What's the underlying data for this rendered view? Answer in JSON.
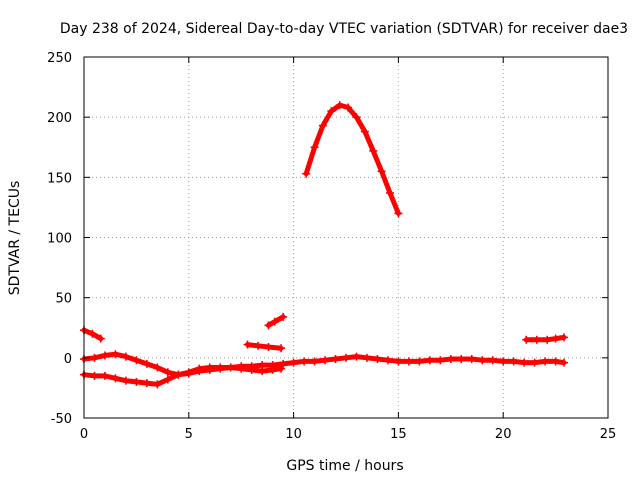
{
  "chart_data": {
    "type": "scatter",
    "title": "Day 238 of 2024, Sidereal Day-to-day VTEC variation (SDTVAR) for receiver dae3",
    "xlabel": "GPS time / hours",
    "ylabel": "SDTVAR / TECUs",
    "xlim": [
      0,
      25
    ],
    "ylim": [
      -50,
      250
    ],
    "x_ticks": [
      "0",
      "5",
      "10",
      "15",
      "20",
      "25"
    ],
    "y_ticks": [
      "-50",
      "0",
      "50",
      "100",
      "150",
      "200",
      "250"
    ],
    "grid": true,
    "marker": "plus",
    "color": "#ff0000",
    "series": [
      {
        "name": "upper-left",
        "points": [
          [
            0.0,
            23
          ],
          [
            0.4,
            20
          ],
          [
            0.8,
            16
          ]
        ]
      },
      {
        "name": "main-band",
        "points": [
          [
            0.0,
            -1
          ],
          [
            0.5,
            0
          ],
          [
            1.0,
            2
          ],
          [
            1.5,
            3
          ],
          [
            2.0,
            1
          ],
          [
            2.5,
            -2
          ],
          [
            3.0,
            -5
          ],
          [
            3.5,
            -8
          ],
          [
            4.0,
            -12
          ],
          [
            4.5,
            -14
          ],
          [
            5.0,
            -13
          ],
          [
            5.5,
            -11
          ],
          [
            6.0,
            -10
          ],
          [
            6.5,
            -9
          ],
          [
            7.0,
            -8
          ],
          [
            7.5,
            -7
          ],
          [
            8.0,
            -7
          ],
          [
            8.5,
            -6
          ],
          [
            9.0,
            -6
          ],
          [
            9.5,
            -5
          ],
          [
            10.0,
            -4
          ],
          [
            10.5,
            -3
          ],
          [
            11.0,
            -3
          ],
          [
            11.5,
            -2
          ],
          [
            12.0,
            -1
          ],
          [
            12.5,
            0
          ],
          [
            13.0,
            1
          ],
          [
            13.5,
            0
          ],
          [
            14.0,
            -1
          ],
          [
            14.5,
            -2
          ],
          [
            15.0,
            -3
          ],
          [
            15.5,
            -3
          ],
          [
            16.0,
            -3
          ],
          [
            16.5,
            -2
          ],
          [
            17.0,
            -2
          ],
          [
            17.5,
            -1
          ],
          [
            18.0,
            -1
          ],
          [
            18.5,
            -1
          ],
          [
            19.0,
            -2
          ],
          [
            19.5,
            -2
          ],
          [
            20.0,
            -3
          ],
          [
            20.5,
            -3
          ],
          [
            21.0,
            -4
          ],
          [
            21.5,
            -4
          ],
          [
            22.0,
            -3
          ],
          [
            22.5,
            -3
          ],
          [
            22.9,
            -4
          ]
        ]
      },
      {
        "name": "lower-band",
        "points": [
          [
            0.0,
            -14
          ],
          [
            0.5,
            -15
          ],
          [
            1.0,
            -15
          ],
          [
            1.5,
            -17
          ],
          [
            2.0,
            -19
          ],
          [
            2.5,
            -20
          ],
          [
            3.0,
            -21
          ],
          [
            3.5,
            -22
          ],
          [
            4.0,
            -18
          ],
          [
            4.5,
            -14
          ],
          [
            5.0,
            -12
          ],
          [
            5.5,
            -9
          ],
          [
            6.0,
            -8
          ],
          [
            6.5,
            -8
          ],
          [
            7.0,
            -8
          ],
          [
            7.5,
            -9
          ],
          [
            8.0,
            -10
          ],
          [
            8.5,
            -11
          ],
          [
            9.0,
            -10
          ],
          [
            9.4,
            -9
          ]
        ]
      },
      {
        "name": "mid-segment",
        "points": [
          [
            7.8,
            11
          ],
          [
            8.3,
            10
          ],
          [
            8.8,
            9
          ],
          [
            9.4,
            8
          ]
        ]
      },
      {
        "name": "rising-segment",
        "points": [
          [
            8.8,
            27
          ],
          [
            9.1,
            30
          ],
          [
            9.5,
            34
          ]
        ]
      },
      {
        "name": "midday-arc",
        "points": [
          [
            10.6,
            153
          ],
          [
            11.0,
            175
          ],
          [
            11.4,
            193
          ],
          [
            11.8,
            205
          ],
          [
            12.2,
            210
          ],
          [
            12.6,
            208
          ],
          [
            13.0,
            200
          ],
          [
            13.4,
            188
          ],
          [
            13.8,
            172
          ],
          [
            14.2,
            155
          ],
          [
            14.6,
            137
          ],
          [
            15.0,
            120
          ]
        ]
      },
      {
        "name": "right-segment",
        "points": [
          [
            21.1,
            15
          ],
          [
            21.6,
            15
          ],
          [
            22.1,
            15
          ],
          [
            22.5,
            16
          ],
          [
            22.9,
            17
          ]
        ]
      }
    ]
  }
}
